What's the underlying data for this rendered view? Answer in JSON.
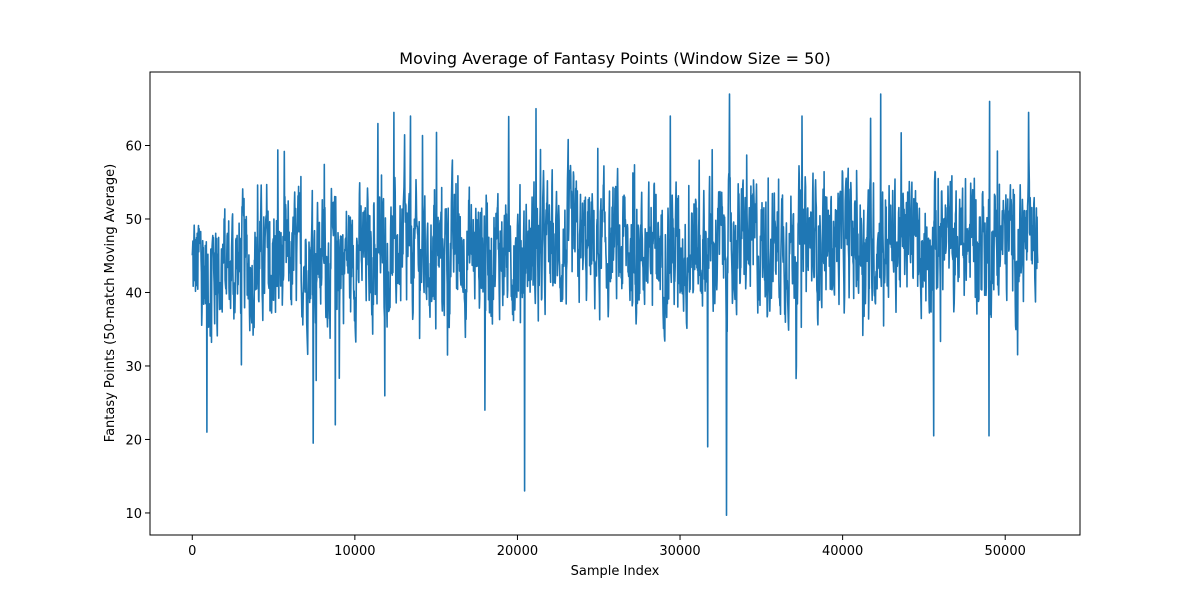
{
  "chart_data": {
    "type": "line",
    "title": "Moving Average of Fantasy Points (Window Size = 50)",
    "xlabel": "Sample Index",
    "ylabel": "Fantasy Points (50-match Moving Average)",
    "xlim": [
      -2600,
      54600
    ],
    "ylim": [
      7.0,
      70.0
    ],
    "xticks": [
      0,
      10000,
      20000,
      30000,
      40000,
      50000
    ],
    "xtick_labels": [
      "0",
      "10000",
      "20000",
      "30000",
      "40000",
      "50000"
    ],
    "yticks": [
      10,
      20,
      30,
      40,
      50,
      60
    ],
    "ytick_labels": [
      "10",
      "20",
      "30",
      "40",
      "50",
      "60"
    ],
    "grid": false,
    "legend": "none",
    "series": [
      {
        "color": "#1f77b4",
        "x_range": [
          0,
          52000
        ],
        "baseline": [
          [
            0,
            43
          ],
          [
            10000,
            45
          ],
          [
            20000,
            46
          ],
          [
            30000,
            46
          ],
          [
            40000,
            47
          ],
          [
            50000,
            47
          ],
          [
            52000,
            46
          ]
        ],
        "band": 7,
        "extreme_points": [
          {
            "x": 20450,
            "y": 13.0
          },
          {
            "x": 32870,
            "y": 9.7
          },
          {
            "x": 33050,
            "y": 67.0
          },
          {
            "x": 42350,
            "y": 67.0
          },
          {
            "x": 49050,
            "y": 66.0
          },
          {
            "x": 21150,
            "y": 65.0
          },
          {
            "x": 12400,
            "y": 64.5
          },
          {
            "x": 51450,
            "y": 64.5
          },
          {
            "x": 900,
            "y": 21.0
          },
          {
            "x": 7450,
            "y": 19.5
          },
          {
            "x": 31700,
            "y": 19.0
          },
          {
            "x": 45600,
            "y": 20.5
          },
          {
            "x": 49000,
            "y": 20.5
          },
          {
            "x": 8800,
            "y": 22.0
          },
          {
            "x": 18000,
            "y": 24.0
          },
          {
            "x": 29400,
            "y": 64.0
          }
        ]
      }
    ]
  }
}
